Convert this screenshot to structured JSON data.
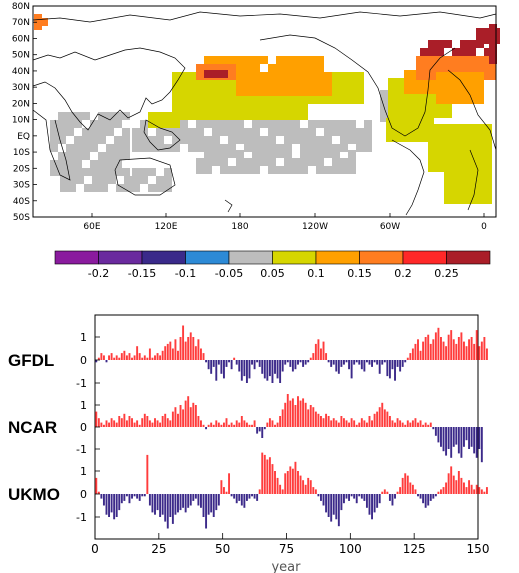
{
  "chart_data": [
    {
      "type": "heatmap",
      "lat_labels": [
        "80N",
        "70N",
        "60N",
        "50N",
        "40N",
        "30N",
        "20N",
        "10N",
        "EQ",
        "10S",
        "20S",
        "30S",
        "40S",
        "50S"
      ],
      "lon_labels": [
        "60E",
        "120E",
        "180",
        "120W",
        "60W",
        "0"
      ],
      "colorbar": {
        "ticks": [
          "-0.2",
          "-0.15",
          "-0.1",
          "-0.05",
          "0.05",
          "0.1",
          "0.15",
          "0.2",
          "0.25"
        ],
        "colors": [
          "#8a1b9e",
          "#6a2a9e",
          "#3a2a8a",
          "#2d8ad6",
          "#bdbdbd",
          "#d6d600",
          "#ffa000",
          "#ff7d20",
          "#ff2828",
          "#aa1e28"
        ]
      },
      "regions": [
        {
          "level": "0.05",
          "color": "#bdbdbd",
          "description": "tropical Indian/Pacific band"
        },
        {
          "level": "0.1",
          "color": "#d6d600",
          "description": "North Pacific and North Atlantic"
        },
        {
          "level": "0.15",
          "color": "#ffa000",
          "description": "mid-latitude North Pacific and Atlantic"
        },
        {
          "level": "0.2",
          "color": "#ff7d20",
          "description": "Kuroshio / Gulf Stream"
        },
        {
          "level": "0.25",
          "color": "#aa1e28",
          "description": "North Atlantic subpolar"
        }
      ]
    },
    {
      "type": "bar",
      "xlabel": "year",
      "xlim": [
        0,
        150
      ],
      "xticks": [
        "0",
        "25",
        "50",
        "75",
        "100",
        "125",
        "150"
      ],
      "yticks": [
        "1",
        "0",
        "-1"
      ],
      "series": [
        {
          "name": "GFDL",
          "ylim": [
            -1.5,
            1.6
          ],
          "values": [
            -0.1,
            0.1,
            0.3,
            0.2,
            -0.1,
            0.2,
            0.3,
            0.1,
            0.2,
            0.1,
            0.3,
            0.4,
            0.2,
            0.3,
            0.1,
            0.2,
            0.6,
            0.3,
            0.1,
            0.2,
            0.1,
            0.5,
            0.1,
            0.2,
            0.3,
            0.2,
            0.4,
            0.6,
            0.7,
            0.8,
            0.5,
            0.9,
            0.4,
            1.0,
            1.5,
            0.8,
            1.0,
            1.2,
            1.0,
            0.6,
            0.9,
            0.5,
            0.3,
            -0.1,
            -0.4,
            -0.6,
            -0.3,
            -0.9,
            -0.2,
            -0.6,
            -0.8,
            -0.3,
            -0.1,
            -0.4,
            0.1,
            -0.2,
            -0.5,
            -0.9,
            -0.7,
            -1.0,
            -0.8,
            -0.2,
            -0.4,
            -0.1,
            -0.3,
            -0.6,
            -0.8,
            -0.9,
            -0.7,
            -1.0,
            -0.6,
            -0.8,
            -1.0,
            -0.5,
            -0.2,
            -0.1,
            -0.3,
            -0.5,
            -0.4,
            -0.2,
            -0.1,
            -0.3,
            -0.2,
            -0.1,
            0.1,
            0.3,
            0.7,
            0.9,
            0.5,
            0.8,
            0.3,
            -0.1,
            -0.3,
            -0.2,
            -0.5,
            -0.6,
            -0.3,
            -0.2,
            -0.1,
            -0.4,
            -0.8,
            -0.2,
            -0.1,
            -0.2,
            -0.4,
            -0.5,
            -0.1,
            -0.2,
            -0.3,
            -0.1,
            -0.2,
            -0.6,
            -0.2,
            -0.1,
            -0.7,
            -0.8,
            -0.4,
            -0.9,
            -0.3,
            -0.5,
            -0.3,
            -0.1,
            0.1,
            0.3,
            0.5,
            0.7,
            0.9,
            0.4,
            0.8,
            1.0,
            1.1,
            0.7,
            0.9,
            1.2,
            1.4,
            1.0,
            0.8,
            0.6,
            1.1,
            1.3,
            0.9,
            0.7,
            1.0,
            1.2,
            0.8,
            0.6,
            0.9,
            1.0,
            0.7,
            1.3,
            0.6,
            0.8,
            1.0,
            0.5
          ]
        },
        {
          "name": "NCAR",
          "ylim": [
            -1.5,
            1.6
          ],
          "values": [
            0.7,
            0.4,
            0.2,
            0.1,
            0.3,
            0.2,
            0.4,
            0.3,
            0.2,
            0.5,
            0.4,
            0.6,
            0.3,
            0.5,
            0.4,
            0.2,
            0.3,
            0.1,
            0.4,
            0.6,
            0.5,
            0.3,
            0.2,
            0.4,
            0.3,
            0.2,
            0.5,
            0.6,
            0.4,
            0.3,
            0.7,
            0.9,
            0.6,
            1.0,
            0.8,
            1.2,
            1.4,
            0.9,
            1.1,
            1.0,
            0.5,
            0.3,
            0.1,
            -0.1,
            0.1,
            0.2,
            0.1,
            0.3,
            0.2,
            0.1,
            0.2,
            0.4,
            0.1,
            0.2,
            0.1,
            0.3,
            0.2,
            0.5,
            0.3,
            0.2,
            0.1,
            0.1,
            0.3,
            -0.3,
            -0.2,
            -0.5,
            -0.1,
            0.2,
            0.4,
            0.3,
            0.1,
            0.2,
            0.5,
            0.8,
            1.1,
            1.5,
            1.2,
            1.3,
            1.0,
            1.4,
            1.2,
            1.3,
            1.1,
            0.8,
            1.0,
            0.9,
            0.7,
            0.6,
            0.5,
            0.4,
            0.6,
            0.5,
            0.3,
            0.4,
            0.3,
            0.2,
            0.5,
            0.4,
            0.3,
            0.2,
            0.4,
            0.3,
            0.1,
            0.2,
            0.4,
            0.3,
            0.2,
            0.5,
            0.3,
            0.6,
            0.7,
            0.9,
            1.1,
            0.8,
            0.7,
            0.5,
            0.3,
            0.2,
            0.4,
            0.3,
            0.2,
            0.1,
            0.3,
            0.2,
            0.3,
            0.4,
            0.2,
            0.3,
            0.1,
            0.2,
            0.1,
            0.2,
            -0.1,
            -0.4,
            -0.7,
            -0.9,
            -1.1,
            -1.3,
            -1.0,
            -1.4,
            -0.9,
            -0.8,
            -1.2,
            -1.4,
            -0.9,
            -0.6,
            -1.0,
            -0.9,
            -1.2,
            -1.4,
            -1.0,
            -1.6
          ]
        },
        {
          "name": "UKMO",
          "ylim": [
            -1.5,
            1.8
          ],
          "values": [
            0.7,
            0.1,
            -0.2,
            -0.5,
            -0.9,
            -1.0,
            -0.8,
            -1.1,
            -1.0,
            -0.7,
            -0.4,
            -0.3,
            -0.1,
            -0.4,
            -0.2,
            -0.1,
            -0.2,
            -0.3,
            -0.1,
            -0.1,
            1.7,
            -0.5,
            -0.8,
            -0.9,
            -0.7,
            -1.0,
            -0.9,
            -1.2,
            -1.5,
            -1.0,
            -1.3,
            -0.9,
            -0.8,
            -0.7,
            -0.6,
            -0.8,
            -0.6,
            -0.5,
            -0.3,
            -0.2,
            -0.5,
            -0.6,
            -1.0,
            -1.5,
            -0.9,
            -0.8,
            -1.0,
            -0.7,
            -0.5,
            0.6,
            0.3,
            0.1,
            0.9,
            -0.1,
            -0.2,
            -0.4,
            -0.3,
            -0.5,
            -0.6,
            -0.3,
            -0.2,
            -0.1,
            -0.2,
            -0.3,
            0.2,
            1.8,
            1.7,
            1.5,
            1.6,
            1.3,
            1.0,
            0.7,
            0.4,
            0.2,
            0.9,
            1.0,
            1.2,
            1.1,
            1.4,
            1.0,
            0.8,
            0.6,
            0.4,
            0.7,
            0.6,
            0.3,
            0.2,
            -0.1,
            -0.3,
            -0.5,
            -0.8,
            -1.0,
            -1.2,
            -0.9,
            -1.1,
            -1.4,
            -0.7,
            -0.4,
            -0.2,
            -0.3,
            -0.1,
            -0.2,
            -0.4,
            -0.1,
            -0.2,
            -0.3,
            -0.6,
            -0.9,
            -1.1,
            -0.8,
            -0.6,
            -0.4,
            0.1,
            0.2,
            0.1,
            -0.3,
            -0.5,
            -0.2,
            0.1,
            0.3,
            0.7,
            0.9,
            0.8,
            0.5,
            0.4,
            0.2,
            -0.1,
            -0.2,
            -0.4,
            -0.6,
            -0.5,
            -0.3,
            -0.2,
            -0.1,
            0.1,
            0.2,
            0.3,
            0.5,
            0.9,
            1.2,
            0.8,
            0.6,
            1.0,
            0.7,
            0.5,
            0.3,
            0.6,
            0.4,
            0.2,
            0.4,
            0.3,
            0.2,
            0.1,
            0.3
          ]
        }
      ]
    }
  ]
}
